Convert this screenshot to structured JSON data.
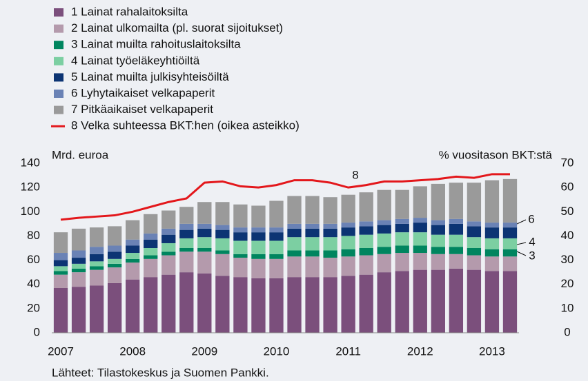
{
  "chart_data": {
    "type": "bar",
    "stacked": true,
    "y_axis_label": "Mrd. euroa",
    "y2_axis_label": "% vuositason BKT:stä",
    "source": "Lähteet: Tilastokeskus ja Suomen Pankki.",
    "categories": [
      "2007",
      null,
      null,
      null,
      "2008",
      null,
      null,
      null,
      "2009",
      null,
      null,
      null,
      "2010",
      null,
      null,
      null,
      "2011",
      null,
      null,
      null,
      "2012",
      null,
      null,
      null,
      "2013",
      null
    ],
    "series": [
      {
        "name": "1 Lainat rahalaitoksilta",
        "color": "#7b4f7c",
        "values": [
          37,
          38,
          39,
          41,
          44,
          46,
          48,
          50,
          49,
          47,
          46,
          45,
          45,
          46,
          46,
          46,
          47,
          48,
          50,
          51,
          52,
          52,
          53,
          52,
          51,
          51
        ]
      },
      {
        "name": "2 Lainat ulkomailta (pl. suorat sijoitukset)",
        "color": "#b49aac",
        "values": [
          11,
          12,
          13,
          13,
          14,
          15,
          16,
          17,
          18,
          18,
          16,
          16,
          16,
          17,
          17,
          16,
          16,
          16,
          15,
          15,
          14,
          13,
          12,
          12,
          12,
          12
        ]
      },
      {
        "name": "3 Lainat muilta rahoituslaitoksilta",
        "color": "#00855f",
        "values": [
          3,
          3,
          3,
          3,
          3,
          3,
          3,
          3,
          3,
          3,
          3,
          4,
          4,
          5,
          5,
          6,
          6,
          6,
          6,
          6,
          6,
          6,
          6,
          6,
          6,
          6
        ]
      },
      {
        "name": "4 Lainat työeläkeyhtiöiltä",
        "color": "#7ccfa2",
        "values": [
          4,
          4,
          4,
          4,
          5,
          6,
          7,
          8,
          9,
          10,
          11,
          11,
          11,
          11,
          11,
          11,
          11,
          11,
          11,
          11,
          11,
          10,
          10,
          9,
          9,
          9
        ]
      },
      {
        "name": "5 Lainat muilta julkisyhteisöiltä",
        "color": "#0c3473",
        "values": [
          5,
          5,
          6,
          6,
          6,
          7,
          7,
          7,
          7,
          7,
          7,
          7,
          7,
          7,
          7,
          7,
          7,
          7,
          7,
          7,
          8,
          8,
          9,
          9,
          9,
          9
        ]
      },
      {
        "name": "6 Lyhytaikaiset velkapaperit",
        "color": "#6a82b5",
        "values": [
          6,
          6,
          6,
          5,
          5,
          5,
          5,
          5,
          4,
          4,
          4,
          4,
          4,
          4,
          4,
          4,
          4,
          4,
          4,
          4,
          4,
          4,
          4,
          4,
          4,
          4
        ]
      },
      {
        "name": "7 Pitkäaikaiset velkapaperit",
        "color": "#9a9a9a",
        "values": [
          17,
          18,
          16,
          16,
          16,
          16,
          15,
          14,
          18,
          19,
          19,
          18,
          22,
          23,
          23,
          22,
          23,
          24,
          25,
          24,
          26,
          30,
          30,
          32,
          35,
          36
        ]
      },
      {
        "name": "8 Velka suhteessa BKT:hen (oikea asteikko)",
        "color": "#e3171b",
        "type": "line",
        "axis": "y2",
        "values": [
          46.7,
          47.5,
          48,
          48.5,
          50,
          52,
          54,
          55.5,
          62,
          62.5,
          60.5,
          60,
          61,
          63,
          63,
          62,
          60,
          61,
          62.5,
          62.5,
          63,
          63.5,
          64.5,
          64,
          65.5,
          65.5
        ]
      }
    ],
    "annotations": [
      "1",
      "2",
      "3",
      "4",
      "5",
      "6",
      "7",
      "8"
    ],
    "ylim": [
      0,
      140
    ],
    "yticks": [
      0,
      20,
      40,
      60,
      80,
      100,
      120,
      140
    ],
    "y2lim": [
      0,
      70
    ],
    "y2ticks": [
      0,
      10,
      20,
      30,
      40,
      50,
      60,
      70
    ],
    "grid": false
  }
}
